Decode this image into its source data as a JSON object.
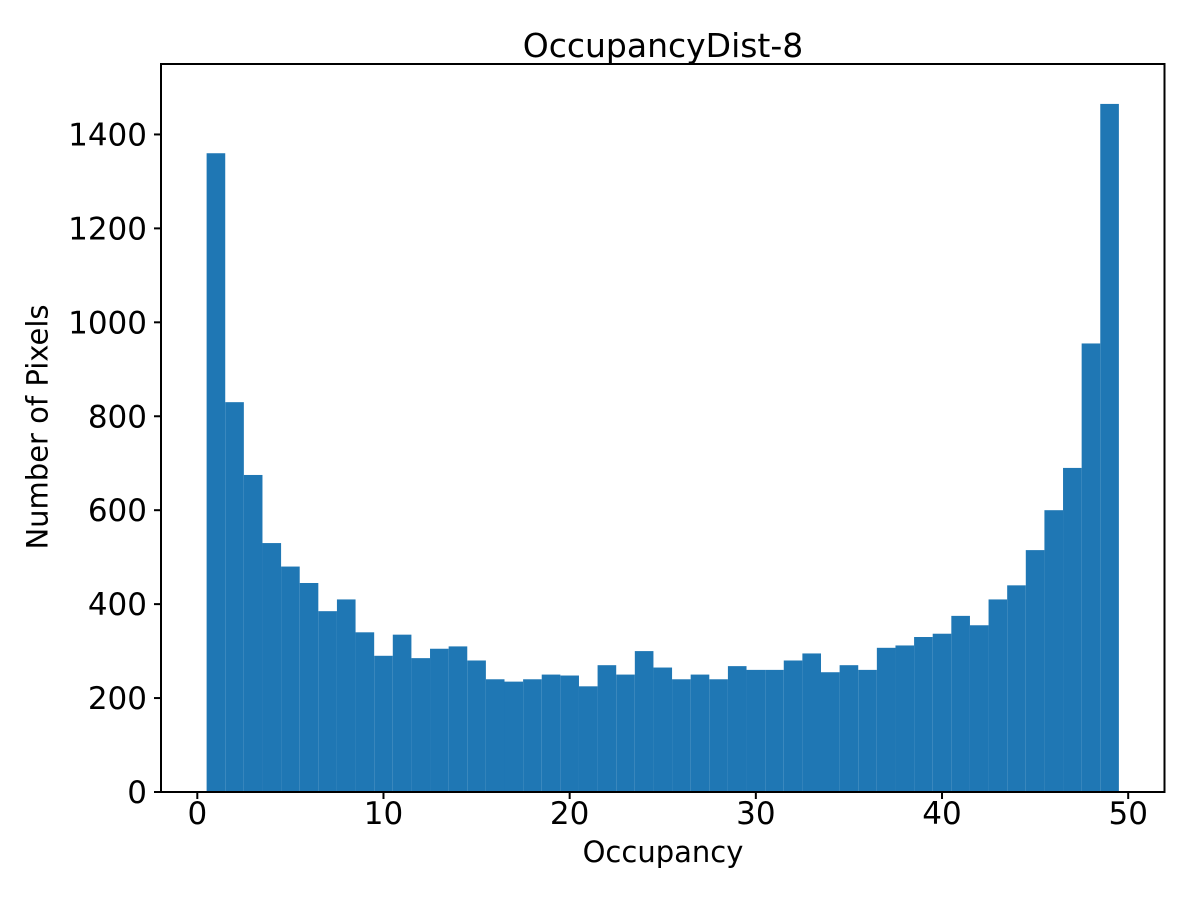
{
  "chart_data": {
    "type": "bar",
    "subtype": "histogram",
    "title": "OccupancyDist-8",
    "xlabel": "Occupancy",
    "ylabel": "Number of Pixels",
    "bar_color": "#1f77b4",
    "axis_color": "#000000",
    "background_color": "#ffffff",
    "grid": false,
    "legend": "none",
    "bin_start": 0.5,
    "bin_width": 1,
    "bin_centers": [
      1,
      2,
      3,
      4,
      5,
      6,
      7,
      8,
      9,
      10,
      11,
      12,
      13,
      14,
      15,
      16,
      17,
      18,
      19,
      20,
      21,
      22,
      23,
      24,
      25,
      26,
      27,
      28,
      29,
      30,
      31,
      32,
      33,
      34,
      35,
      36,
      37,
      38,
      39,
      40,
      41,
      42,
      43,
      44,
      45,
      46,
      47,
      48,
      49
    ],
    "values": [
      1360,
      830,
      675,
      530,
      480,
      445,
      385,
      410,
      340,
      290,
      335,
      285,
      305,
      310,
      280,
      240,
      235,
      240,
      250,
      248,
      225,
      270,
      250,
      300,
      265,
      240,
      250,
      240,
      268,
      260,
      260,
      280,
      295,
      255,
      270,
      260,
      307,
      312,
      330,
      337,
      375,
      355,
      410,
      440,
      515,
      600,
      690,
      955,
      1465
    ],
    "xlim": [
      -1.95,
      51.95
    ],
    "ylim": [
      0,
      1550
    ],
    "xticks": [
      0,
      10,
      20,
      30,
      40,
      50
    ],
    "yticks": [
      0,
      200,
      400,
      600,
      800,
      1000,
      1200,
      1400
    ]
  }
}
